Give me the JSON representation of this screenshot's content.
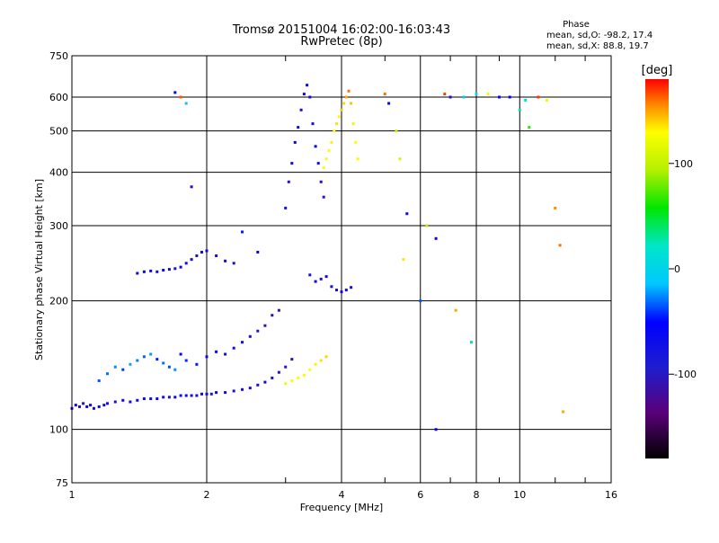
{
  "header": {
    "title_line1": "Tromsø 20151004 16:02:00-16:03:43",
    "title_line2": "RwPretec (8p)"
  },
  "phase_info": {
    "heading": "Phase",
    "o_line": "mean, sd,O: -98.2, 17.4",
    "x_line": "mean, sd,X:  88.8, 19.7"
  },
  "colorbar": {
    "unit_label": "[deg]",
    "tick_values": [
      100,
      0,
      -100
    ],
    "tick_labels": [
      "100",
      "0",
      "-100"
    ]
  },
  "chart_data": {
    "type": "scatter",
    "xlabel": "Frequency [MHz]",
    "ylabel": "Stationary phase Virtual Height [km]",
    "x_scale": "log",
    "y_scale": "log",
    "xlim": [
      1,
      16
    ],
    "ylim": [
      75,
      750
    ],
    "xticks": [
      1,
      2,
      4,
      6,
      8,
      10,
      16
    ],
    "xtick_labels": [
      "1",
      "2",
      "4",
      "6",
      "8",
      "10",
      "16"
    ],
    "yticks": [
      75,
      100,
      200,
      300,
      400,
      500,
      600,
      750
    ],
    "ytick_labels": [
      "75",
      "100",
      "200",
      "300",
      "400",
      "500",
      "600",
      "750"
    ],
    "grid": true,
    "color_by": "phase [deg]",
    "series": [
      {
        "role": "O-trace low layer",
        "x": [
          1.0,
          1.02,
          1.04,
          1.06,
          1.08,
          1.1,
          1.12,
          1.15,
          1.18,
          1.2,
          1.25,
          1.3,
          1.35,
          1.4,
          1.45,
          1.5,
          1.55,
          1.6,
          1.65,
          1.7,
          1.75,
          1.8,
          1.85,
          1.9,
          1.95,
          2.0,
          2.05,
          2.1,
          2.2,
          2.3,
          2.4,
          2.5,
          2.6,
          2.7,
          2.8,
          2.9,
          3.0,
          3.1
        ],
        "y": [
          112,
          114,
          113,
          115,
          113,
          114,
          112,
          113,
          114,
          115,
          116,
          117,
          116,
          117,
          118,
          118,
          118,
          119,
          119,
          119,
          120,
          120,
          120,
          120,
          121,
          121,
          121,
          122,
          122,
          123,
          124,
          125,
          127,
          129,
          132,
          136,
          140,
          146
        ],
        "phase": [
          -105,
          -100,
          -108,
          -110,
          -98,
          -102,
          -106,
          -100,
          -104,
          -108,
          -110,
          -102,
          -106,
          -104,
          -108,
          -110,
          -100,
          -106,
          -112,
          -104,
          -106,
          -102,
          -108,
          -110,
          -104,
          -106,
          -112,
          -100,
          -104,
          -110,
          -106,
          -108,
          -112,
          -104,
          -110,
          -118,
          -125,
          -130
        ]
      },
      {
        "role": "scattered spread F region",
        "x": [
          1.15,
          1.2,
          1.25,
          1.3,
          1.35,
          1.4,
          1.45,
          1.5,
          1.55,
          1.6,
          1.65,
          1.7,
          1.75,
          1.8,
          1.9,
          2.0,
          2.1,
          2.2,
          2.3,
          2.4,
          2.5,
          2.6,
          2.7,
          2.8,
          2.9
        ],
        "y": [
          130,
          135,
          140,
          138,
          142,
          145,
          148,
          150,
          146,
          143,
          140,
          138,
          150,
          145,
          142,
          148,
          152,
          150,
          155,
          160,
          165,
          170,
          175,
          185,
          190
        ],
        "phase": [
          -80,
          -75,
          -70,
          -85,
          -65,
          -72,
          -78,
          -68,
          -90,
          -75,
          -82,
          -70,
          -95,
          -88,
          -92,
          -100,
          -98,
          -105,
          -110,
          -108,
          -112,
          -120,
          -125,
          -130,
          -128
        ]
      },
      {
        "role": "E-layer trace",
        "x": [
          1.4,
          1.45,
          1.5,
          1.55,
          1.6,
          1.65,
          1.7,
          1.75,
          1.8,
          1.85,
          1.9,
          1.95,
          2.0,
          2.1,
          2.2,
          2.3
        ],
        "y": [
          232,
          234,
          235,
          234,
          236,
          237,
          238,
          240,
          245,
          250,
          255,
          260,
          262,
          255,
          248,
          245
        ],
        "phase": [
          -105,
          -100,
          -102,
          -108,
          -98,
          -104,
          -110,
          -100,
          -105,
          -108,
          -112,
          -106,
          -102,
          -110,
          -104,
          -108
        ]
      },
      {
        "role": "F-layer vertical trace",
        "x": [
          3.0,
          3.05,
          3.1,
          3.15,
          3.2,
          3.25,
          3.3,
          3.35,
          3.4,
          3.45,
          3.5,
          3.55,
          3.6,
          3.65
        ],
        "y": [
          330,
          380,
          420,
          470,
          510,
          560,
          610,
          640,
          600,
          520,
          460,
          420,
          380,
          350
        ],
        "phase": [
          -110,
          -115,
          -105,
          -100,
          -108,
          -112,
          -104,
          -100,
          -106,
          -110,
          -102,
          -108,
          -115,
          -120
        ]
      },
      {
        "role": "X-trace high",
        "x": [
          3.65,
          3.7,
          3.75,
          3.8,
          3.85,
          3.9,
          3.95,
          4.0,
          4.05,
          4.1,
          4.15,
          4.2,
          4.25,
          4.3,
          4.35
        ],
        "y": [
          410,
          430,
          450,
          470,
          500,
          520,
          540,
          560,
          580,
          600,
          620,
          580,
          520,
          470,
          430
        ],
        "phase": [
          85,
          92,
          88,
          95,
          90,
          100,
          92,
          110,
          105,
          120,
          140,
          110,
          95,
          88,
          92
        ]
      },
      {
        "role": "X-trace low",
        "x": [
          3.0,
          3.1,
          3.2,
          3.3,
          3.4,
          3.5,
          3.6,
          3.7
        ],
        "y": [
          128,
          130,
          132,
          134,
          138,
          142,
          145,
          148
        ],
        "phase": [
          80,
          85,
          90,
          92,
          88,
          95,
          100,
          105
        ]
      },
      {
        "role": "F-layer foot",
        "x": [
          3.4,
          3.5,
          3.6,
          3.7,
          3.8,
          3.9,
          4.0,
          4.1,
          4.2
        ],
        "y": [
          230,
          222,
          225,
          228,
          216,
          212,
          210,
          212,
          215
        ],
        "phase": [
          -110,
          -100,
          -115,
          -105,
          -108,
          -112,
          -104,
          -100,
          -106
        ]
      },
      {
        "role": "isolated points",
        "x": [
          5.0,
          5.1,
          5.3,
          5.4,
          5.6,
          6.2,
          6.5,
          6.8,
          7.0,
          7.5,
          8.0,
          8.5,
          9.0,
          9.5,
          10.0,
          10.3,
          10.5,
          11.0,
          11.5,
          12.0,
          12.3,
          12.5,
          1.7,
          1.75,
          1.8,
          1.85,
          2.4,
          2.6,
          5.5,
          6.0,
          6.5,
          7.2,
          7.8
        ],
        "y": [
          610,
          580,
          500,
          430,
          320,
          300,
          280,
          610,
          600,
          600,
          610,
          610,
          600,
          600,
          560,
          590,
          510,
          600,
          590,
          330,
          270,
          110,
          615,
          600,
          580,
          370,
          290,
          260,
          250,
          200,
          100,
          190,
          160
        ],
        "phase": [
          140,
          -100,
          50,
          60,
          -105,
          40,
          -98,
          160,
          -110,
          -60,
          -40,
          80,
          -100,
          -95,
          -20,
          -30,
          10,
          160,
          80,
          130,
          140,
          120,
          -100,
          150,
          -60,
          -110,
          -90,
          -100,
          100,
          -80,
          -100,
          120,
          -20
        ]
      }
    ]
  }
}
